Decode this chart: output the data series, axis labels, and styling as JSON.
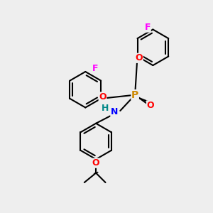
{
  "bg_color": "#eeeeee",
  "bond_color": "#000000",
  "bond_width": 1.5,
  "atom_colors": {
    "F": "#ff00ff",
    "O": "#ff0000",
    "N": "#0000ff",
    "P": "#cc8800",
    "H": "#008888",
    "C": "#000000"
  },
  "font_size": 9
}
